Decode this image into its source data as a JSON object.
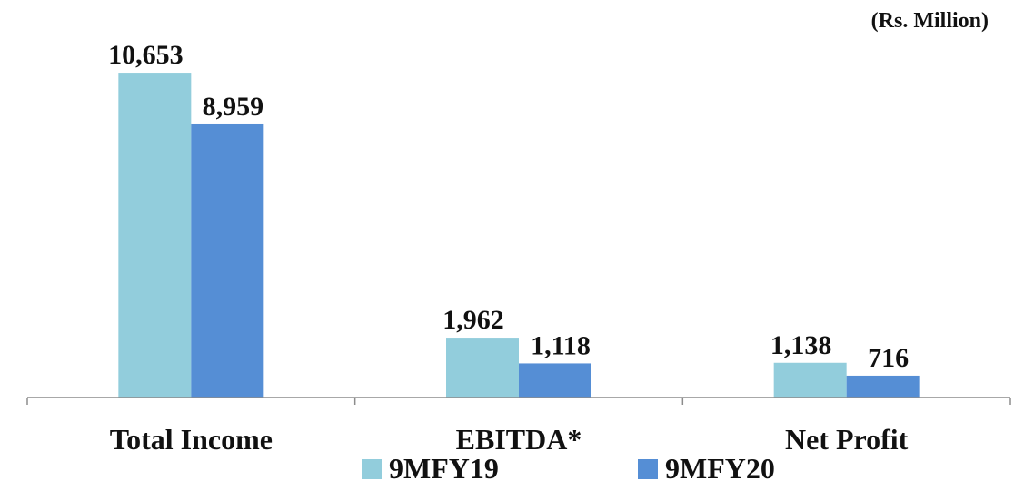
{
  "chart_data": {
    "type": "bar",
    "unit_label": "(Rs. Million)",
    "categories": [
      "Total Income",
      "EBITDA*",
      "Net Profit"
    ],
    "series": [
      {
        "name": "9MFY19",
        "values": [
          10653,
          1962,
          1138
        ],
        "labels": [
          "10,653",
          "1,962",
          "1,138"
        ],
        "color": "#92CDDC"
      },
      {
        "name": "9MFY20",
        "values": [
          8959,
          1118,
          716
        ],
        "labels": [
          "8,959",
          "1,118",
          "716"
        ],
        "color": "#558ED5"
      }
    ],
    "ylim": [
      0,
      12500
    ],
    "grid": false,
    "legend": "bottom"
  }
}
